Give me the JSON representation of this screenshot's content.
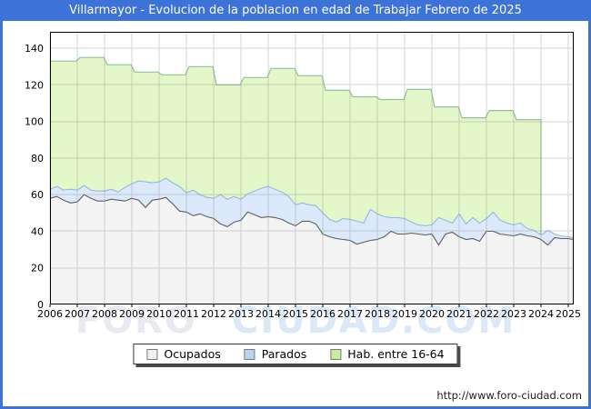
{
  "header": {
    "title": "Villarmayor - Evolucion de la poblacion en edad de Trabajar Febrero de 2025"
  },
  "watermark": {
    "part1": "FORO",
    "part2": "CIUDAD.COM"
  },
  "footer": {
    "url": "http://www.foro-ciudad.com"
  },
  "colors": {
    "frame_blue": "#3d73d9",
    "grid": "#999999",
    "plot_border": "#000000",
    "ocupados_fill": "#f4f4f4",
    "ocupados_line": "#5e5e5e",
    "parados_fill": "#dbe9fa",
    "parados_line": "#94b8e2",
    "hab_fill": "#e4f7c8",
    "hab_line": "#90c19c"
  },
  "legend": {
    "items": [
      {
        "label": "Ocupados",
        "color": "#f1f1f1"
      },
      {
        "label": "Parados",
        "color": "#bad4ef"
      },
      {
        "label": "Hab. entre 16-64",
        "color": "#c8ee9c"
      }
    ]
  },
  "chart_data": {
    "type": "area",
    "title": "Villarmayor - Evolucion de la poblacion en edad de Trabajar Febrero de 2025",
    "xlabel": "",
    "ylabel": "",
    "xlim": [
      2006,
      2025.2
    ],
    "ylim": [
      0,
      149
    ],
    "grid": true,
    "legend_position": "bottom",
    "x_ticks": [
      "2006",
      "2007",
      "2008",
      "2009",
      "2010",
      "2011",
      "2012",
      "2013",
      "2014",
      "2015",
      "2016",
      "2017",
      "2018",
      "2019",
      "2020",
      "2021",
      "2022",
      "2023",
      "2024",
      "2025"
    ],
    "y_ticks": [
      0,
      20,
      40,
      60,
      80,
      100,
      120,
      140
    ],
    "x_start": 2006,
    "x_step": 0.25,
    "x_count": 76,
    "x_extra": [
      2025,
      2025.17
    ],
    "series": [
      {
        "name": "Ocupados",
        "kind": "quarterly-line",
        "values": [
          58,
          59,
          57,
          55.5,
          56,
          60,
          58,
          56.5,
          56.5,
          57.5,
          57,
          56.5,
          58,
          57,
          53,
          57,
          57.5,
          58.5,
          55,
          51,
          50.5,
          48.5,
          49.5,
          48,
          47,
          44,
          42.5,
          45,
          46,
          50.5,
          49,
          47.5,
          48,
          47.5,
          46.5,
          44.5,
          43,
          45.5,
          45.5,
          44,
          38.5,
          37,
          36,
          35.5,
          35,
          33,
          34,
          35,
          35.5,
          37,
          40,
          38.5,
          38.5,
          39,
          38.5,
          38,
          38.5,
          32.5,
          38.5,
          39.5,
          37,
          35.5,
          36,
          34.5,
          40,
          40,
          38.5,
          38,
          37.5,
          38.5,
          37.5,
          37,
          35.5,
          32.5,
          36.5,
          36,
          36,
          35.5
        ]
      },
      {
        "name": "Parados",
        "kind": "quarterly-band-stacked-on-Ocupados",
        "values": [
          5,
          5.5,
          5.5,
          7.5,
          6.5,
          5,
          4.5,
          5.5,
          5.5,
          5.5,
          4.5,
          7.5,
          8,
          10.5,
          14,
          9.5,
          9.5,
          10.5,
          11.5,
          13.5,
          10.5,
          14,
          10.5,
          10.5,
          11,
          16,
          15,
          14,
          11.5,
          10,
          13,
          16,
          16.5,
          15.5,
          15,
          14.5,
          11.5,
          10,
          9,
          10,
          11.5,
          9.5,
          9,
          11.5,
          11.5,
          12.5,
          10.5,
          17,
          14,
          11,
          7.5,
          9,
          8.5,
          6,
          5,
          5,
          5,
          15,
          7.5,
          5,
          12.5,
          8.5,
          11.5,
          10,
          7,
          10.5,
          7.5,
          6.5,
          6,
          6,
          4,
          3.5,
          2.5,
          8,
          2,
          1.5,
          1,
          1
        ]
      },
      {
        "name": "Hab. entre 16-64",
        "kind": "annual-steps",
        "year_start": 2006,
        "values": [
          133,
          135,
          131,
          127,
          125.5,
          130,
          120,
          124,
          129,
          125,
          117,
          113.5,
          112,
          117.5,
          108,
          102,
          106,
          101
        ],
        "data_end": 2024
      }
    ]
  }
}
